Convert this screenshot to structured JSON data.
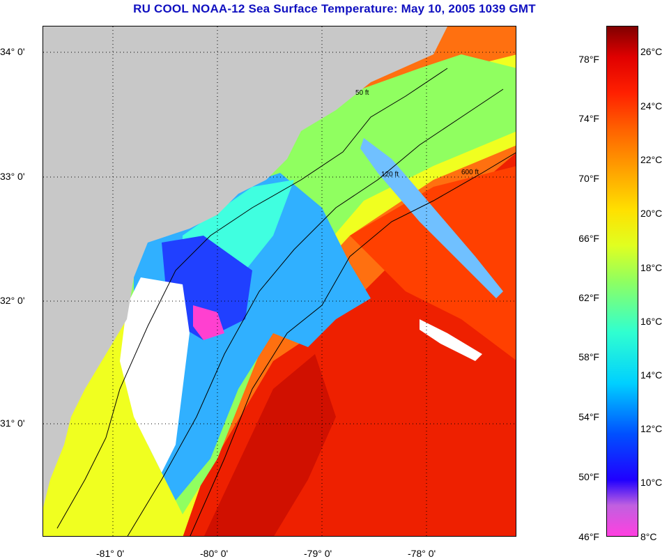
{
  "title": "RU COOL  NOAA-12  Sea Surface Temperature:  May 10, 2005 1039 GMT",
  "lat_labels": [
    "34° 0'",
    "33° 0'",
    "32° 0'",
    "31° 0'"
  ],
  "lon_labels": [
    "-81° 0'",
    "-80° 0'",
    "-79° 0'",
    "-78° 0'"
  ],
  "contour_labels": [
    "50 ft",
    "120 ft",
    "600 ft"
  ],
  "colorbar": {
    "fahrenheit": [
      "78°F",
      "74°F",
      "70°F",
      "66°F",
      "62°F",
      "58°F",
      "54°F",
      "50°F",
      "46°F"
    ],
    "celsius": [
      "26°C",
      "24°C",
      "22°C",
      "20°C",
      "18°C",
      "16°C",
      "14°C",
      "12°C",
      "10°C",
      "8°C"
    ]
  },
  "colors": {
    "land": "#c8c8c8",
    "title": "#1010c0"
  }
}
